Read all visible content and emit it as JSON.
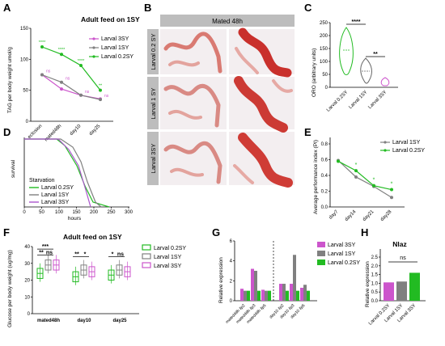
{
  "colors": {
    "green": "#22bb22",
    "grey": "#808080",
    "magenta": "#cc55cc",
    "darkgrey": "#555555"
  },
  "panels": {
    "A": {
      "label": "A",
      "title": "Adult feed on 1SY",
      "ylabel": "TAG per body weight umol/g",
      "ylim": [
        0,
        150
      ],
      "yticks": [
        "0",
        "50",
        "100",
        "150"
      ],
      "categories": [
        "eclosion",
        "mated48h",
        "day10",
        "day25"
      ],
      "legend": [
        "Larval 3SY",
        "Larval 1SY",
        "Larval 0.2SY"
      ],
      "series": [
        {
          "name": "Larval 3SY",
          "values": [
            75,
            52,
            42,
            36
          ]
        },
        {
          "name": "Larval 1SY",
          "values": [
            75,
            63,
            42,
            35
          ]
        },
        {
          "name": "Larval 0.2SY",
          "values": [
            120,
            108,
            90,
            50
          ]
        }
      ],
      "sig": [
        "****",
        "****",
        "****",
        "**"
      ],
      "ns": [
        "ns",
        "ns",
        "ns",
        "ns"
      ]
    },
    "B": {
      "label": "B",
      "header": "Mated 48h",
      "rows": [
        "Larval 0.2 SY",
        "Larval 1 SY",
        "Larval 3SY"
      ]
    },
    "C": {
      "label": "C",
      "ylabel": "ORO (arbitrary units)",
      "ylim": [
        0,
        250
      ],
      "yticks": [
        "0",
        "50",
        "100",
        "150",
        "200",
        "250"
      ],
      "categories": [
        "Larval 0.2SY",
        "Larval 1SY",
        "Larval 3SY"
      ],
      "sig": [
        "****",
        "**"
      ]
    },
    "D": {
      "label": "D",
      "ylabel": "survival",
      "xlabel": "hours",
      "xticks": [
        "0",
        "50",
        "100",
        "150",
        "200",
        "250",
        "300"
      ],
      "legend_title": "Starvation",
      "legend": [
        "Larval 0.2SY",
        "Larval 1SY",
        "Larval 3SY"
      ]
    },
    "E": {
      "label": "E",
      "ylabel": "Average performance index (PI)",
      "ylim": [
        0,
        0.8
      ],
      "yticks": [
        "0.0",
        "0.2",
        "0.4",
        "0.6",
        "0.8"
      ],
      "categories": [
        "day7",
        "day14",
        "day21",
        "day28"
      ],
      "legend": [
        "Larval 1SY",
        "Larval 0.2SY"
      ],
      "series": [
        {
          "name": "Larval 1SY",
          "values": [
            0.59,
            0.38,
            0.26,
            0.12
          ]
        },
        {
          "name": "Larval 0.2SY",
          "values": [
            0.58,
            0.46,
            0.27,
            0.22
          ]
        }
      ],
      "sig": [
        "*",
        "*",
        "*"
      ]
    },
    "F": {
      "label": "F",
      "title": "Adult feed on 1SY",
      "ylabel": "Glucose per body weight (ug/mg)",
      "ylim": [
        0,
        40
      ],
      "yticks": [
        "0",
        "10",
        "20",
        "30",
        "40"
      ],
      "categories": [
        "mated48h",
        "day10",
        "day25"
      ],
      "legend": [
        "Larval 0.2SY",
        "Larval 1SY",
        "Larval 3SY"
      ],
      "sig": [
        "***",
        "**",
        "ns",
        "**",
        "*",
        "*",
        "ns"
      ]
    },
    "G": {
      "label": "G",
      "ylabel": "Relative expression",
      "ylim": [
        0,
        6
      ],
      "yticks": [
        "0",
        "2",
        "4",
        "6"
      ],
      "categories": [
        "mated48h ilp2",
        "mated48h ilp3",
        "mated48h ilp5",
        "day10 ilp2",
        "day10 ilp3",
        "day10 ilp5"
      ],
      "legend": [
        "Larval 3SY",
        "Larval 1SY",
        "Larval 0.2SY"
      ],
      "series": [
        {
          "name": "Larval 3SY",
          "values": [
            1.2,
            3.2,
            1.1,
            1.7,
            1.7,
            1.3
          ]
        },
        {
          "name": "Larval 1SY",
          "values": [
            1.0,
            3.0,
            1.0,
            1.7,
            4.6,
            1.6
          ]
        },
        {
          "name": "Larval 0.2SY",
          "values": [
            1.0,
            1.0,
            1.0,
            1.0,
            1.0,
            1.0
          ]
        }
      ]
    },
    "H": {
      "label": "H",
      "title": "Nlaz",
      "ylabel": "Relative expression",
      "ylim": [
        0,
        2.5
      ],
      "yticks": [
        "0.0",
        "0.5",
        "1.0",
        "1.5",
        "2.0",
        "2.5"
      ],
      "categories": [
        "Larval 0.2SY",
        "Larval 1SY",
        "Larval 3SY"
      ],
      "values": [
        1.05,
        1.1,
        1.6
      ],
      "sig": "ns"
    }
  }
}
